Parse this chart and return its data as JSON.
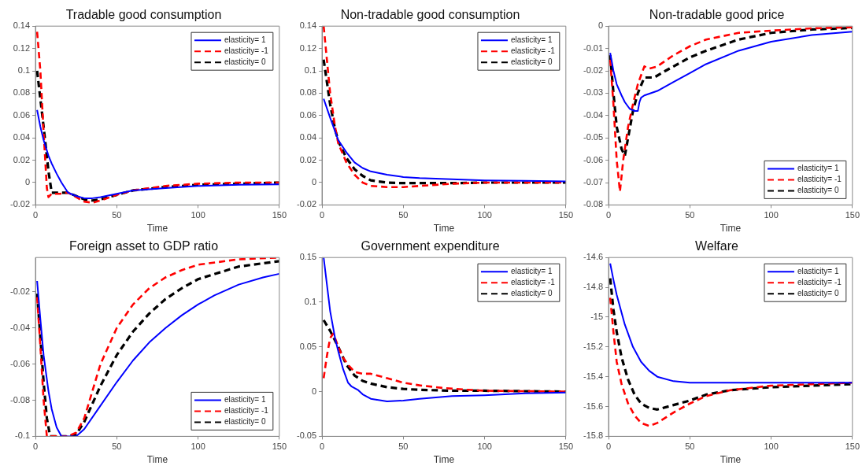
{
  "chart_data": [
    {
      "type": "line",
      "title": "Tradable good consumption",
      "xlabel": "Time",
      "xlim": [
        0,
        150
      ],
      "xticks": [
        0,
        50,
        100,
        150
      ],
      "ylim": [
        -0.02,
        0.14
      ],
      "yticks": [
        -0.02,
        0,
        0.02,
        0.04,
        0.06,
        0.08,
        0.1,
        0.12,
        0.14
      ],
      "grid": false,
      "legend": "top right",
      "marker": "none",
      "series": [
        {
          "name": "elasticity= 1",
          "color": "#0000ff",
          "line_style": "solid",
          "x": [
            1,
            3,
            5,
            8,
            10,
            13,
            16,
            20,
            25,
            30,
            35,
            40,
            50,
            60,
            80,
            100,
            125,
            150
          ],
          "values": [
            0.065,
            0.05,
            0.038,
            0.024,
            0.017,
            0.008,
            0.0,
            -0.009,
            -0.012,
            -0.014,
            -0.014,
            -0.013,
            -0.01,
            -0.007,
            -0.005,
            -0.003,
            -0.002,
            -0.0015
          ]
        },
        {
          "name": "elasticity= -1",
          "color": "#ff0000",
          "line_style": "dashed",
          "x": [
            1,
            3,
            5,
            7,
            8,
            10,
            15,
            20,
            25,
            30,
            35,
            40,
            50,
            60,
            80,
            100,
            125,
            150
          ],
          "values": [
            0.135,
            0.1,
            0.045,
            -0.005,
            -0.013,
            -0.01,
            -0.01,
            -0.009,
            -0.013,
            -0.017,
            -0.018,
            -0.016,
            -0.011,
            -0.007,
            -0.003,
            -0.001,
            0,
            0
          ]
        },
        {
          "name": "elasticity= 0",
          "color": "#000000",
          "line_style": "dashed",
          "x": [
            1,
            3,
            5,
            8,
            10,
            15,
            20,
            25,
            30,
            35,
            40,
            50,
            60,
            80,
            100,
            125,
            150
          ],
          "values": [
            0.1,
            0.075,
            0.05,
            0.01,
            -0.009,
            -0.009,
            -0.009,
            -0.012,
            -0.015,
            -0.016,
            -0.015,
            -0.011,
            -0.007,
            -0.004,
            -0.002,
            -0.001,
            0
          ]
        }
      ]
    },
    {
      "type": "line",
      "title": "Non-tradable good consumption",
      "xlabel": "Time",
      "xlim": [
        0,
        150
      ],
      "xticks": [
        0,
        50,
        100,
        150
      ],
      "ylim": [
        -0.02,
        0.14
      ],
      "yticks": [
        -0.02,
        0,
        0.02,
        0.04,
        0.06,
        0.08,
        0.1,
        0.12,
        0.14
      ],
      "grid": false,
      "legend": "top right",
      "marker": "none",
      "series": [
        {
          "name": "elasticity= 1",
          "color": "#0000ff",
          "line_style": "solid",
          "x": [
            1,
            5,
            10,
            15,
            20,
            25,
            30,
            40,
            50,
            60,
            80,
            100,
            125,
            150
          ],
          "values": [
            0.075,
            0.058,
            0.038,
            0.027,
            0.018,
            0.013,
            0.01,
            0.007,
            0.005,
            0.004,
            0.003,
            0.002,
            0.0015,
            0.001
          ]
        },
        {
          "name": "elasticity= -1",
          "color": "#ff0000",
          "line_style": "dashed",
          "x": [
            1,
            3,
            5,
            8,
            10,
            15,
            20,
            25,
            30,
            40,
            50,
            60,
            80,
            100,
            150
          ],
          "values": [
            0.14,
            0.11,
            0.08,
            0.05,
            0.035,
            0.018,
            0.007,
            0,
            -0.003,
            -0.004,
            -0.004,
            -0.003,
            -0.001,
            0,
            0
          ]
        },
        {
          "name": "elasticity= 0",
          "color": "#000000",
          "line_style": "dashed",
          "x": [
            1,
            3,
            5,
            8,
            10,
            15,
            20,
            25,
            30,
            40,
            50,
            80,
            100,
            150
          ],
          "values": [
            0.11,
            0.09,
            0.07,
            0.048,
            0.037,
            0.022,
            0.012,
            0.006,
            0.002,
            0,
            -0.0005,
            -0.0005,
            0,
            0
          ]
        }
      ]
    },
    {
      "type": "line",
      "title": "Non-tradable good price",
      "xlabel": "Time",
      "xlim": [
        0,
        150
      ],
      "xticks": [
        0,
        50,
        100,
        150
      ],
      "ylim": [
        -0.08,
        0
      ],
      "yticks": [
        -0.08,
        -0.07,
        -0.06,
        -0.05,
        -0.04,
        -0.03,
        -0.02,
        -0.01,
        0
      ],
      "grid": false,
      "legend": "bottom right",
      "marker": "none",
      "series": [
        {
          "name": "elasticity= 1",
          "color": "#0000ff",
          "line_style": "solid",
          "x": [
            1,
            3,
            5,
            8,
            10,
            13,
            16,
            18,
            19,
            20,
            22,
            30,
            40,
            50,
            60,
            80,
            100,
            125,
            150
          ],
          "values": [
            -0.012,
            -0.02,
            -0.026,
            -0.031,
            -0.034,
            -0.037,
            -0.038,
            -0.038,
            -0.034,
            -0.032,
            -0.031,
            -0.029,
            -0.025,
            -0.021,
            -0.017,
            -0.011,
            -0.007,
            -0.004,
            -0.0025
          ]
        },
        {
          "name": "elasticity= -1",
          "color": "#ff0000",
          "line_style": "dashed",
          "x": [
            1,
            3,
            5,
            7,
            9,
            12,
            15,
            18,
            22,
            25,
            30,
            40,
            50,
            60,
            80,
            100,
            125,
            150
          ],
          "values": [
            -0.015,
            -0.035,
            -0.06,
            -0.074,
            -0.06,
            -0.045,
            -0.035,
            -0.026,
            -0.018,
            -0.019,
            -0.018,
            -0.013,
            -0.009,
            -0.006,
            -0.003,
            -0.002,
            -0.001,
            -0.0005
          ]
        },
        {
          "name": "elasticity= 0",
          "color": "#000000",
          "line_style": "dashed",
          "x": [
            1,
            3,
            5,
            8,
            10,
            12,
            15,
            18,
            22,
            28,
            35,
            50,
            60,
            80,
            100,
            125,
            150
          ],
          "values": [
            -0.013,
            -0.03,
            -0.045,
            -0.055,
            -0.058,
            -0.05,
            -0.038,
            -0.03,
            -0.023,
            -0.023,
            -0.02,
            -0.014,
            -0.011,
            -0.006,
            -0.003,
            -0.0015,
            -0.0008
          ]
        }
      ]
    },
    {
      "type": "line",
      "title": "Foreign asset to GDP ratio",
      "xlabel": "Time",
      "xlim": [
        0,
        150
      ],
      "xticks": [
        0,
        50,
        100,
        150
      ],
      "ylim": [
        -0.1,
        -0.001
      ],
      "yticks": [
        -0.1,
        -0.08,
        -0.06,
        -0.04,
        -0.02
      ],
      "grid": false,
      "legend": "bottom right",
      "marker": "none",
      "series": [
        {
          "name": "elasticity= 1",
          "color": "#0000ff",
          "line_style": "solid",
          "x": [
            1,
            3,
            5,
            8,
            10,
            13,
            16,
            20,
            25,
            30,
            40,
            50,
            60,
            70,
            80,
            90,
            100,
            110,
            125,
            140,
            150
          ],
          "values": [
            -0.014,
            -0.035,
            -0.055,
            -0.075,
            -0.085,
            -0.095,
            -0.1,
            -0.1,
            -0.1,
            -0.096,
            -0.083,
            -0.07,
            -0.058,
            -0.048,
            -0.04,
            -0.033,
            -0.027,
            -0.022,
            -0.016,
            -0.012,
            -0.01
          ]
        },
        {
          "name": "elasticity= -1",
          "color": "#ff0000",
          "line_style": "dashed",
          "x": [
            1,
            3,
            5,
            7,
            10,
            20,
            25,
            30,
            35,
            40,
            50,
            60,
            70,
            80,
            90,
            100,
            125,
            150
          ],
          "values": [
            -0.023,
            -0.05,
            -0.08,
            -0.1,
            -0.1,
            -0.1,
            -0.098,
            -0.09,
            -0.075,
            -0.06,
            -0.04,
            -0.027,
            -0.018,
            -0.012,
            -0.008,
            -0.005,
            -0.002,
            -0.001
          ]
        },
        {
          "name": "elasticity= 0",
          "color": "#000000",
          "line_style": "dashed",
          "x": [
            1,
            3,
            5,
            7,
            9,
            20,
            25,
            30,
            40,
            50,
            60,
            70,
            80,
            90,
            100,
            125,
            150
          ],
          "values": [
            -0.021,
            -0.045,
            -0.07,
            -0.09,
            -0.1,
            -0.1,
            -0.099,
            -0.092,
            -0.072,
            -0.055,
            -0.042,
            -0.032,
            -0.024,
            -0.018,
            -0.013,
            -0.006,
            -0.003
          ]
        }
      ]
    },
    {
      "type": "line",
      "title": "Government expenditure",
      "xlabel": "Time",
      "xlim": [
        0,
        150
      ],
      "xticks": [
        0,
        50,
        100,
        150
      ],
      "ylim": [
        -0.05,
        0.15
      ],
      "yticks": [
        -0.05,
        0,
        0.05,
        0.1,
        0.15
      ],
      "grid": false,
      "legend": "top right",
      "marker": "none",
      "series": [
        {
          "name": "elasticity= 1",
          "color": "#0000ff",
          "line_style": "solid",
          "x": [
            1,
            3,
            5,
            8,
            10,
            13,
            16,
            18,
            22,
            25,
            30,
            40,
            50,
            60,
            80,
            100,
            125,
            150
          ],
          "values": [
            0.15,
            0.12,
            0.09,
            0.06,
            0.045,
            0.025,
            0.01,
            0.006,
            0.002,
            -0.003,
            -0.008,
            -0.011,
            -0.01,
            -0.008,
            -0.005,
            -0.004,
            -0.002,
            -0.001
          ]
        },
        {
          "name": "elasticity= -1",
          "color": "#ff0000",
          "line_style": "dashed",
          "x": [
            1,
            3,
            5,
            7,
            10,
            13,
            16,
            20,
            25,
            30,
            40,
            50,
            60,
            75,
            90,
            100,
            150
          ],
          "values": [
            0.015,
            0.04,
            0.06,
            0.065,
            0.05,
            0.038,
            0.03,
            0.022,
            0.02,
            0.02,
            0.015,
            0.01,
            0.007,
            0.004,
            0.002,
            0.001,
            0
          ]
        },
        {
          "name": "elasticity= 0",
          "color": "#000000",
          "line_style": "dashed",
          "x": [
            1,
            5,
            10,
            15,
            20,
            25,
            30,
            40,
            50,
            60,
            80,
            100,
            150
          ],
          "values": [
            0.08,
            0.068,
            0.05,
            0.03,
            0.018,
            0.012,
            0.009,
            0.005,
            0.003,
            0.002,
            0.001,
            0.001,
            0
          ]
        }
      ]
    },
    {
      "type": "line",
      "title": "Welfare",
      "xlabel": "Time",
      "xlim": [
        0,
        150
      ],
      "xticks": [
        0,
        50,
        100,
        150
      ],
      "ylim": [
        -15.8,
        -14.6
      ],
      "yticks": [
        -15.8,
        -15.6,
        -15.4,
        -15.2,
        -15,
        -14.8,
        -14.6
      ],
      "grid": false,
      "legend": "top right",
      "marker": "none",
      "series": [
        {
          "name": "elasticity= 1",
          "color": "#0000ff",
          "line_style": "solid",
          "x": [
            1,
            3,
            5,
            10,
            15,
            20,
            25,
            30,
            40,
            50,
            75,
            100,
            150
          ],
          "values": [
            -14.64,
            -14.75,
            -14.85,
            -15.05,
            -15.2,
            -15.3,
            -15.36,
            -15.4,
            -15.43,
            -15.44,
            -15.44,
            -15.44,
            -15.44
          ]
        },
        {
          "name": "elasticity= -1",
          "color": "#ff0000",
          "line_style": "dashed",
          "x": [
            1,
            3,
            5,
            8,
            12,
            16,
            20,
            25,
            30,
            40,
            50,
            60,
            75,
            100,
            125,
            150
          ],
          "values": [
            -14.87,
            -15.1,
            -15.3,
            -15.45,
            -15.58,
            -15.66,
            -15.71,
            -15.73,
            -15.71,
            -15.64,
            -15.58,
            -15.53,
            -15.49,
            -15.46,
            -15.45,
            -15.44
          ]
        },
        {
          "name": "elasticity= 0",
          "color": "#000000",
          "line_style": "dashed",
          "x": [
            1,
            3,
            5,
            8,
            12,
            16,
            20,
            25,
            30,
            40,
            50,
            60,
            75,
            100,
            125,
            150
          ],
          "values": [
            -14.74,
            -14.95,
            -15.1,
            -15.27,
            -15.42,
            -15.52,
            -15.58,
            -15.61,
            -15.62,
            -15.59,
            -15.56,
            -15.52,
            -15.49,
            -15.47,
            -15.46,
            -15.45
          ]
        }
      ]
    }
  ]
}
